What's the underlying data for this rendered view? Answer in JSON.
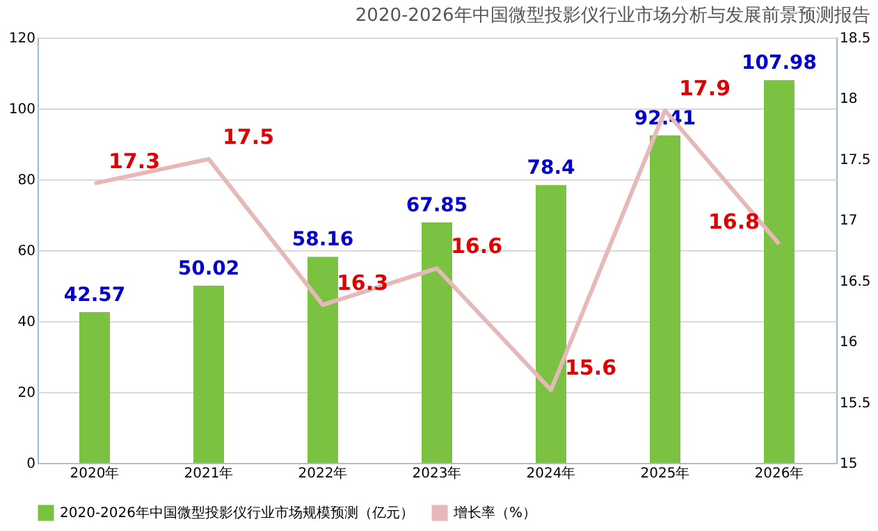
{
  "chart_data": {
    "type": "bar",
    "title": "2020-2026年中国微型投影仪行业市场分析与发展前景预测报告",
    "categories": [
      "2020年",
      "2021年",
      "2022年",
      "2023年",
      "2024年",
      "2025年",
      "2026年"
    ],
    "series": [
      {
        "name": "2020-2026年中国微型投影仪行业市场规模预测（亿元）",
        "color": "#7cc242",
        "values": [
          42.57,
          50.02,
          58.16,
          67.85,
          78.4,
          92.41,
          107.98
        ]
      },
      {
        "name": "增长率（%）",
        "type": "line",
        "axis": "y2",
        "color": "#e6b9b8",
        "values": [
          17.3,
          17.5,
          16.3,
          16.6,
          15.6,
          17.9,
          16.8
        ]
      }
    ],
    "ylim": [
      0,
      120
    ],
    "yticks": [
      0,
      20,
      40,
      60,
      80,
      100,
      120
    ],
    "y2lim": [
      15,
      18.5
    ],
    "y2ticks": [
      15,
      15.5,
      16,
      16.5,
      17,
      17.5,
      18,
      18.5
    ],
    "grid": "y",
    "legend": "bottom",
    "data_labels": true,
    "marker": "none",
    "line_style": "solid"
  }
}
